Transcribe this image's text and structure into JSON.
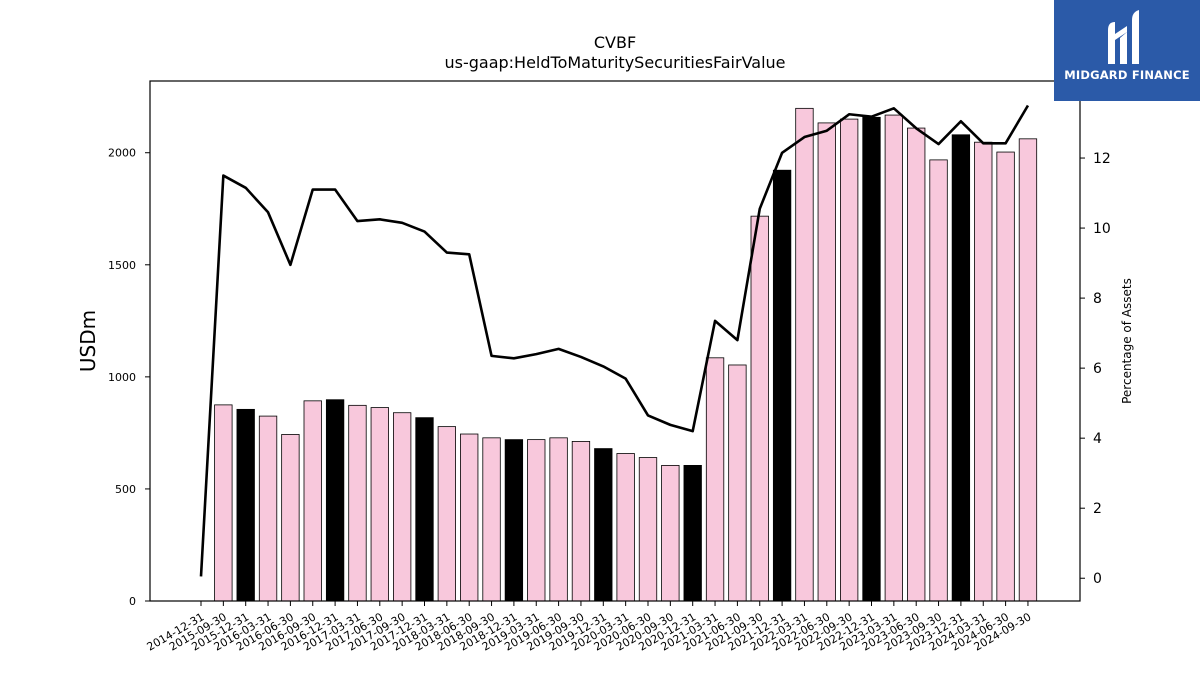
{
  "brand": {
    "name": "MIDGARD FINANCE",
    "logo_icon": "midgard-m-logo-icon",
    "background_color": "#2b5aa8"
  },
  "chart_data": {
    "type": "bar",
    "title": "CVBF",
    "subtitle": "us-gaap:HeldToMaturitySecuritiesFairValue",
    "ylabel": "USDm",
    "y2label": "Percentage of Assets",
    "ylim": [
      0,
      2320
    ],
    "y2lim": [
      -0.65,
      14.2
    ],
    "yticks": [
      0,
      500,
      1000,
      1500,
      2000
    ],
    "y2ticks": [
      0,
      2,
      4,
      6,
      8,
      10,
      12
    ],
    "categories": [
      "2014-12-31",
      "2015-09-30",
      "2015-12-31",
      "2016-03-31",
      "2016-06-30",
      "2016-09-30",
      "2016-12-31",
      "2017-03-31",
      "2017-06-30",
      "2017-09-30",
      "2017-12-31",
      "2018-03-31",
      "2018-06-30",
      "2018-09-30",
      "2018-12-31",
      "2019-03-31",
      "2019-06-30",
      "2019-09-30",
      "2019-12-31",
      "2020-03-31",
      "2020-06-30",
      "2020-09-30",
      "2020-12-31",
      "2021-03-31",
      "2021-06-30",
      "2021-09-30",
      "2021-12-31",
      "2022-03-31",
      "2022-06-30",
      "2022-09-30",
      "2022-12-31",
      "2023-03-31",
      "2023-06-30",
      "2023-09-30",
      "2023-12-31",
      "2024-03-31",
      "2024-06-30",
      "2024-09-30"
    ],
    "series": [
      {
        "type": "bar",
        "values": [
          0,
          875,
          855,
          825,
          743,
          893,
          898,
          873,
          863,
          840,
          818,
          778,
          745,
          728,
          720,
          720,
          728,
          712,
          680,
          658,
          640,
          605,
          605,
          1085,
          1053,
          1717,
          1922,
          2198,
          2133,
          2150,
          2158,
          2168,
          2110,
          1968,
          2080,
          2047,
          2003,
          2062
        ],
        "highlight_quarter_end": "12-31"
      },
      {
        "type": "line",
        "axis": "right",
        "values": [
          0.05,
          11.5,
          11.15,
          10.45,
          8.95,
          11.1,
          11.1,
          10.2,
          10.25,
          10.15,
          9.9,
          9.3,
          9.25,
          6.35,
          6.28,
          6.4,
          6.55,
          6.32,
          6.05,
          5.7,
          4.65,
          4.38,
          4.2,
          7.35,
          6.8,
          10.55,
          12.15,
          12.6,
          12.78,
          13.25,
          13.18,
          13.42,
          12.85,
          12.4,
          13.05,
          12.42,
          12.42,
          13.5
        ]
      }
    ],
    "colors": {
      "bar_default": "#f8c8dc",
      "bar_highlight": "#000000",
      "bar_edge": "#000000",
      "line": "#000000"
    },
    "grid": false,
    "legend": "none"
  }
}
